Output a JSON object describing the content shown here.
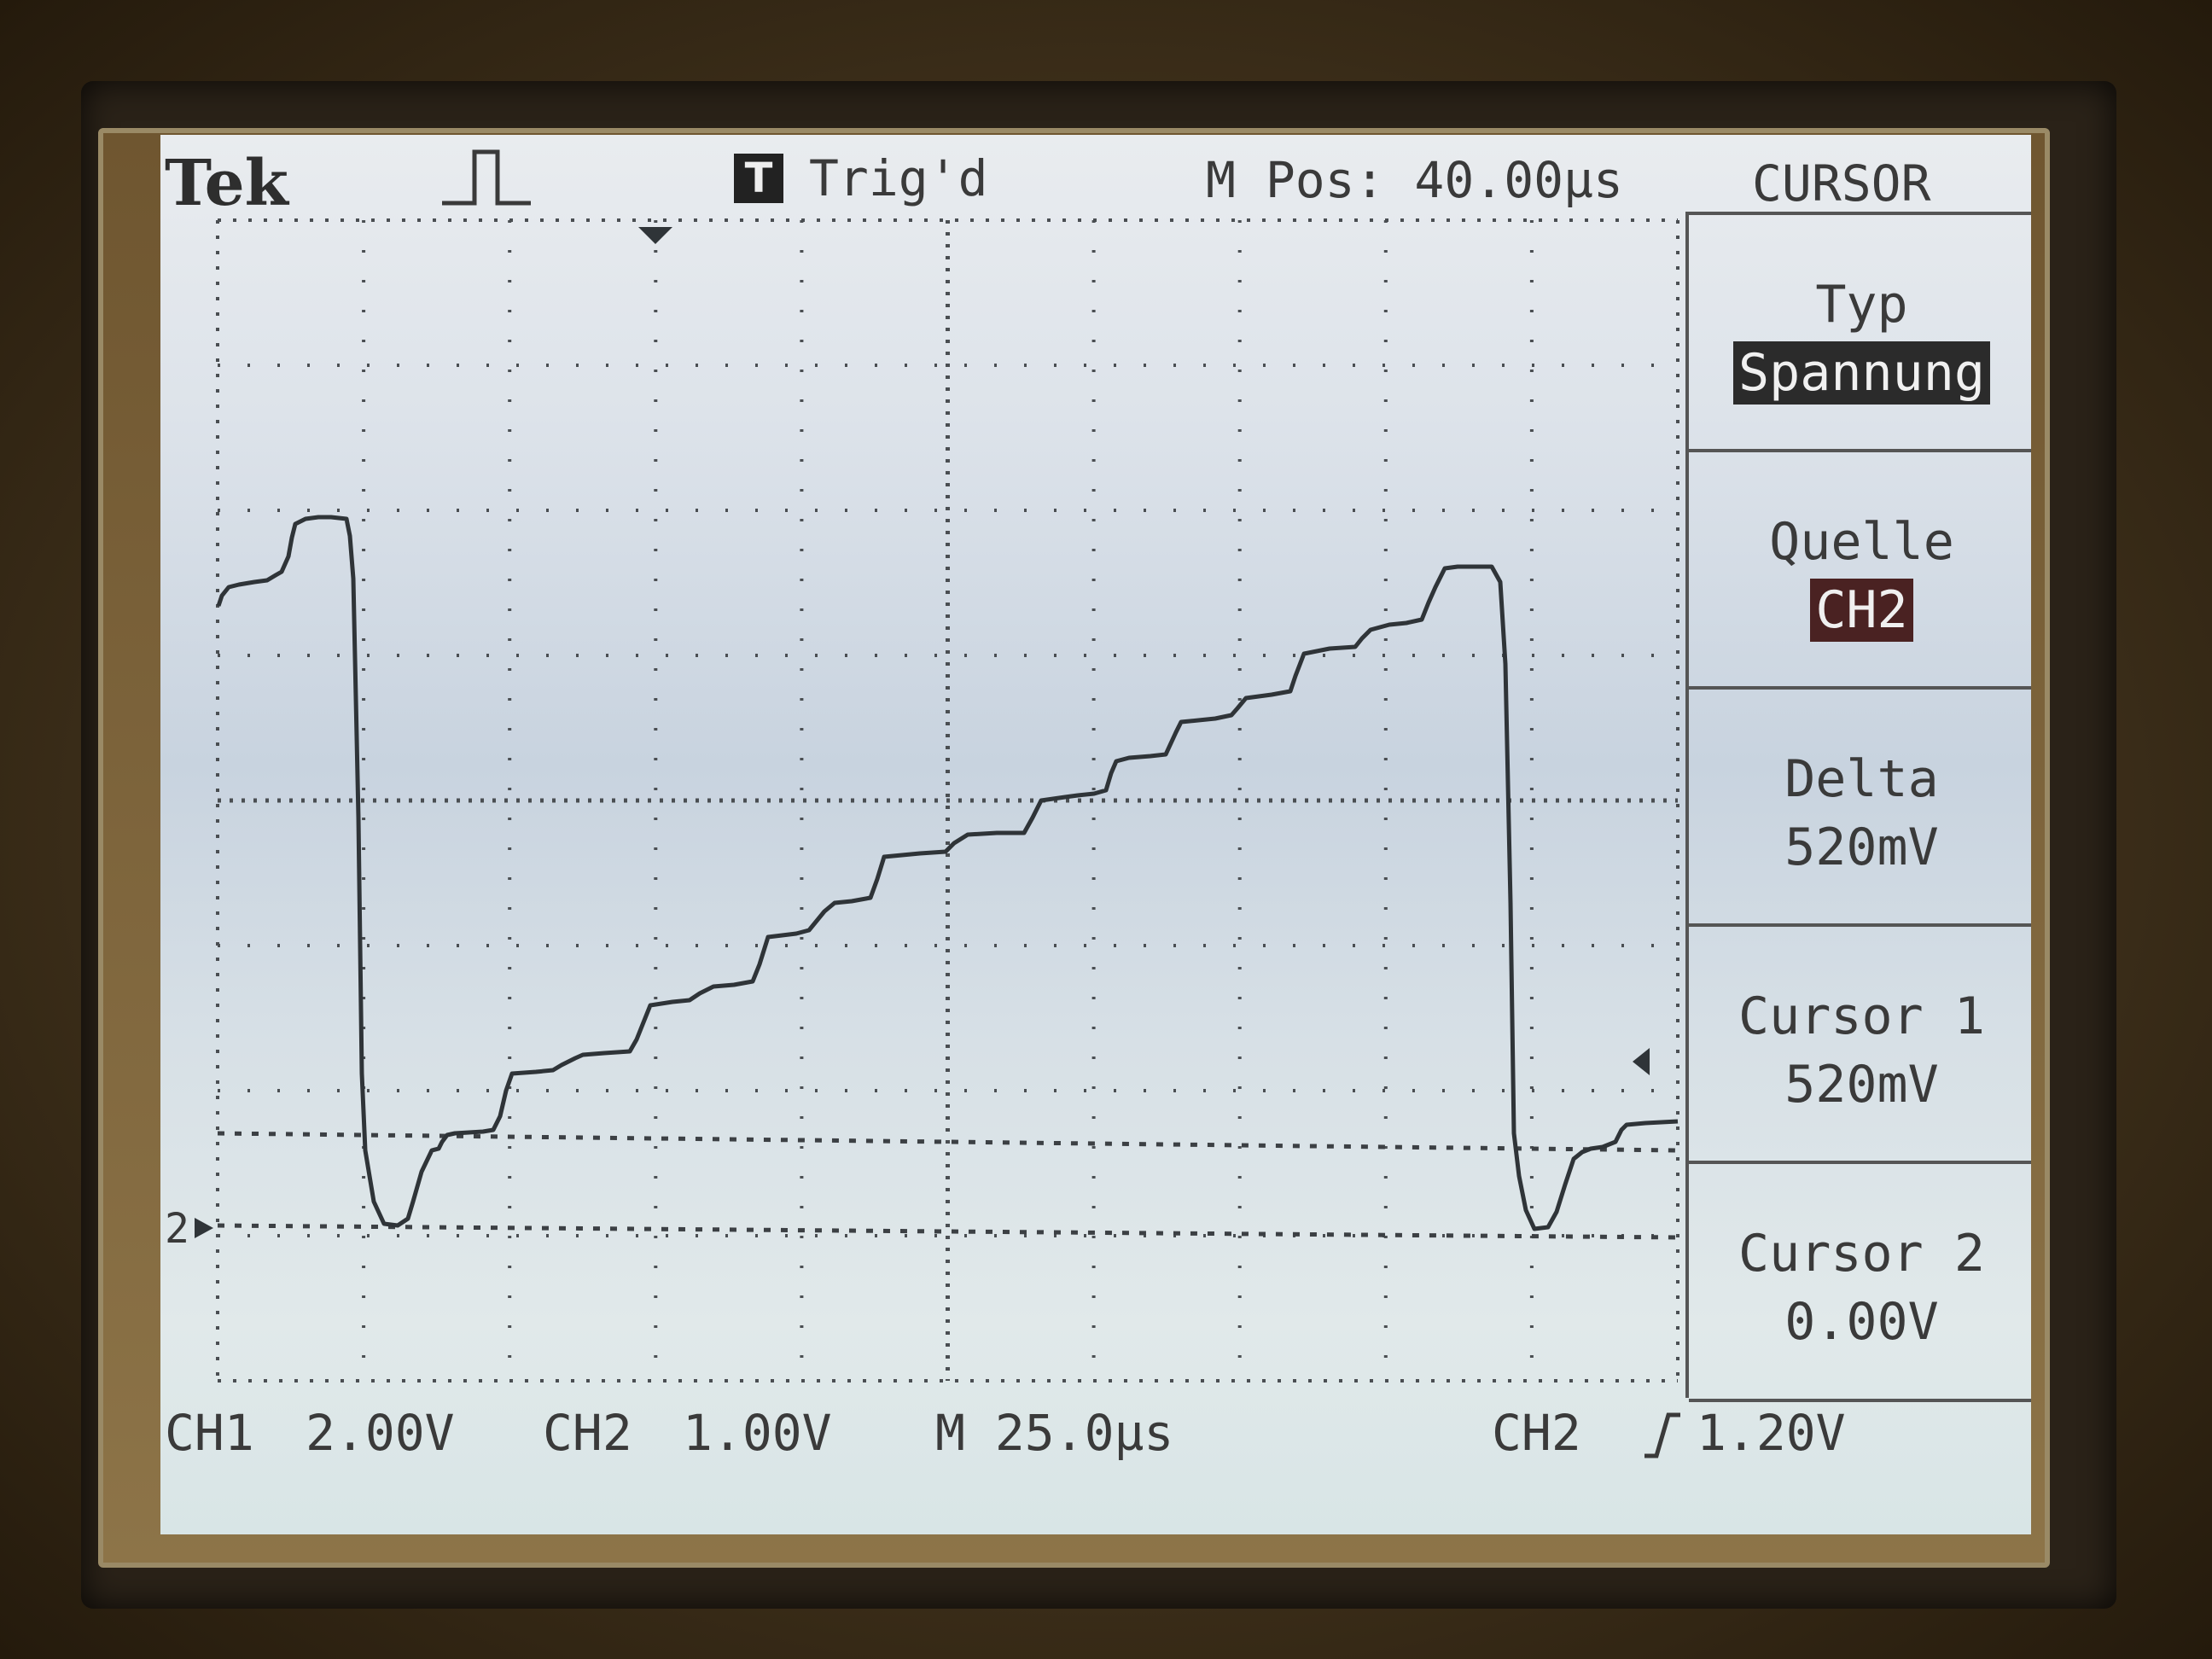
{
  "header": {
    "brand": "Tek",
    "trigger_badge": "T",
    "trigger_status": "Trig'd",
    "m_pos": "M Pos: 40.00µs",
    "menu_title": "CURSOR"
  },
  "side_menu": {
    "typ_label": "Typ",
    "typ_value": "Spannung",
    "quelle_label": "Quelle",
    "quelle_value": "CH2",
    "delta_label": "Delta",
    "delta_value": "520mV",
    "cursor1_label": "Cursor 1",
    "cursor1_value": "520mV",
    "cursor2_label": "Cursor 2",
    "cursor2_value": "0.00V"
  },
  "footer": {
    "ch1": "CH1",
    "ch1_scale": "2.00V",
    "ch2": "CH2",
    "ch2_scale": "1.00V",
    "timebase": "M 25.0µs",
    "trigger_source": "CH2",
    "trigger_level": "1.20V"
  },
  "channel_marker": "2",
  "colors": {
    "trace": "#2f3438",
    "grid": "#4a4e52",
    "screen_bg": "#d6dee6"
  }
}
